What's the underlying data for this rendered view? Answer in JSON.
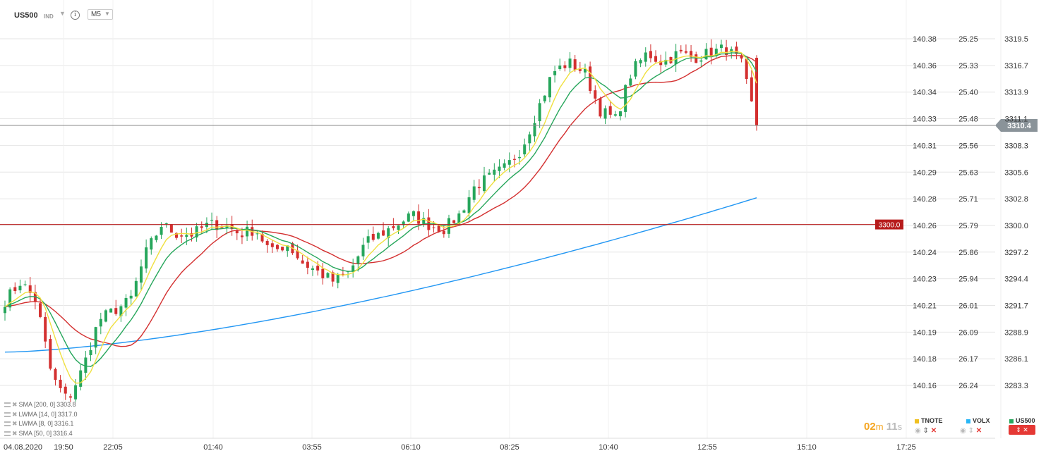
{
  "header": {
    "symbol": "US500",
    "indicator_tag": "IND",
    "timeframe": "M5"
  },
  "chart_data": {
    "type": "candlestick",
    "current_price": "3310.4",
    "horizontal_line_label": "3300.0",
    "x_ticks": [
      "04.08.2020",
      "19:50",
      "22:05",
      "01:40",
      "03:55",
      "06:10",
      "08:25",
      "10:40",
      "12:55",
      "15:10",
      "17:25"
    ],
    "y_axes": [
      {
        "ticks": [
          "140.38",
          "140.36",
          "140.34",
          "140.33",
          "140.31",
          "140.29",
          "140.28",
          "140.26",
          "140.24",
          "140.23",
          "140.21",
          "140.19",
          "140.18",
          "140.16"
        ]
      },
      {
        "ticks": [
          "25.25",
          "25.33",
          "25.40",
          "25.48",
          "25.56",
          "25.63",
          "25.71",
          "25.79",
          "25.86",
          "25.94",
          "26.01",
          "26.09",
          "26.17",
          "26.24"
        ]
      },
      {
        "ticks": [
          "3319.5",
          "3316.7",
          "3313.9",
          "3311.1",
          "3308.3",
          "3305.6",
          "3302.8",
          "3300.0",
          "3297.2",
          "3294.4",
          "3291.7",
          "3288.9",
          "3286.1",
          "3283.3"
        ]
      }
    ],
    "ylim": [
      3281.5,
      3322
    ],
    "close_path": [
      3292,
      3294,
      3292,
      3284,
      3281.5,
      3285,
      3290,
      3291,
      3292,
      3297,
      3300,
      3299,
      3299,
      3300,
      3300,
      3299,
      3299.5,
      3297,
      3298,
      3296,
      3295,
      3294,
      3295,
      3298,
      3299,
      3300,
      3301,
      3300,
      3299.5,
      3301,
      3304,
      3305,
      3306,
      3308,
      3312,
      3316,
      3317,
      3316,
      3312,
      3311,
      3316,
      3318,
      3317,
      3318,
      3317.5,
      3318,
      3318.5,
      3317,
      3310.5
    ],
    "indicators": [
      {
        "name": "SMA",
        "params": "[200,  0]",
        "value": "3303.8",
        "color": "#2196f3"
      },
      {
        "name": "LWMA",
        "params": "[14,  0]",
        "value": "3317.0",
        "color": "#26a65b"
      },
      {
        "name": "LWMA",
        "params": "[8,  0]",
        "value": "3316.1",
        "color": "#f0e040"
      },
      {
        "name": "SMA",
        "params": "[50,  0]",
        "value": "3316.4",
        "color": "#d32f2f"
      }
    ],
    "colors": {
      "up": "#26a65b",
      "down": "#d32f2f",
      "grid": "#e6e6e6",
      "price_line": "#888888",
      "level_line": "#b71c1c"
    }
  },
  "footer": {
    "timer_minutes": "02",
    "timer_m": "m",
    "timer_seconds": "11",
    "timer_s": "s",
    "compare": [
      {
        "label": "TNOTE",
        "color": "#f0c020"
      },
      {
        "label": "VOLX",
        "color": "#29b6f6"
      },
      {
        "label": "US500",
        "color": "#26a65b"
      }
    ]
  }
}
